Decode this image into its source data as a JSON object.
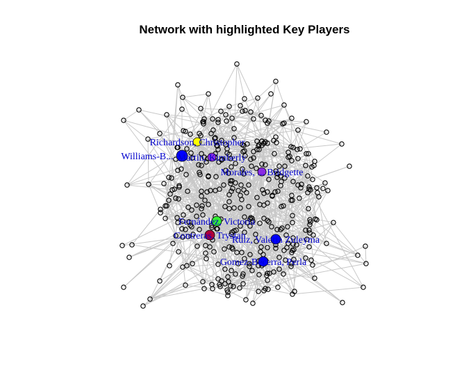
{
  "title": "Network with highlighted Key Players",
  "key_players": [
    {
      "name": "Richardson, Christopher",
      "color": "#ffff00"
    },
    {
      "name": "Williams-B...",
      "color": "#0000ff"
    },
    {
      "name": "Martin, Kimberly",
      "color": "#8a2be2"
    },
    {
      "name": "Morales, ... Bridgette",
      "color": "#8a2be2"
    },
    {
      "name": "Fernández, Victoria",
      "color": "#33ee33"
    },
    {
      "name": "Contreras, Trystan",
      "color": "#b0003a"
    },
    {
      "name": "Ruiz, Valeria Zuleyma",
      "color": "#0000ff"
    },
    {
      "name": "Gomez-Becerra, Perla",
      "color": "#0000ff"
    }
  ],
  "colors": {
    "edge": "#c8c8c8",
    "node_stroke": "#000000",
    "label": "#0000cc"
  }
}
